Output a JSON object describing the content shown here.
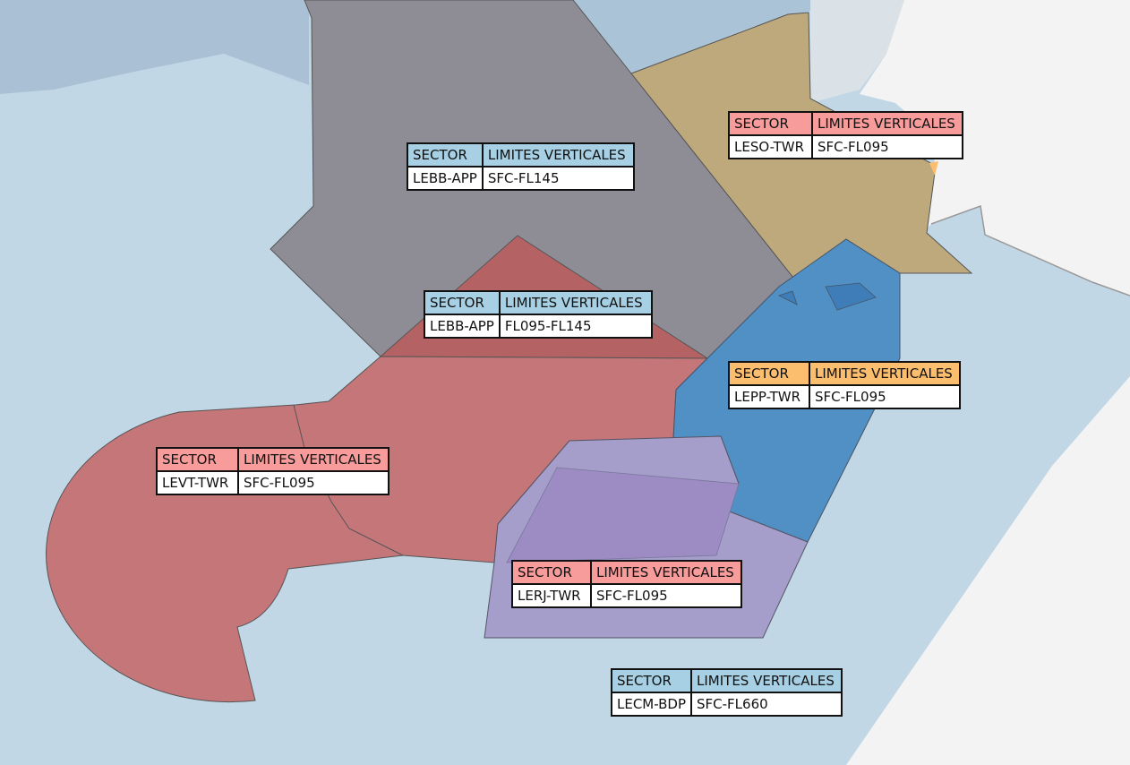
{
  "colors": {
    "header_blue": "#a7d0e4",
    "header_red": "#f79b9b",
    "header_orange": "#fbbd6e"
  },
  "header": {
    "sector": "SECTOR",
    "limits": "LIMITES VERTICALES"
  },
  "sectors": [
    {
      "id": "LEBB-APP",
      "limits": "SFC-FL145",
      "header_color": "blue"
    },
    {
      "id": "LEBB-APP",
      "limits": "FL095-FL145",
      "header_color": "blue"
    },
    {
      "id": "LESO-TWR",
      "limits": "SFC-FL095",
      "header_color": "red"
    },
    {
      "id": "LEPP-TWR",
      "limits": "SFC-FL095",
      "header_color": "orange"
    },
    {
      "id": "LEVT-TWR",
      "limits": "SFC-FL095",
      "header_color": "red"
    },
    {
      "id": "LERJ-TWR",
      "limits": "SFC-FL095",
      "header_color": "red"
    },
    {
      "id": "LECM-BDP",
      "limits": "SFC-FL660",
      "header_color": "blue"
    }
  ]
}
